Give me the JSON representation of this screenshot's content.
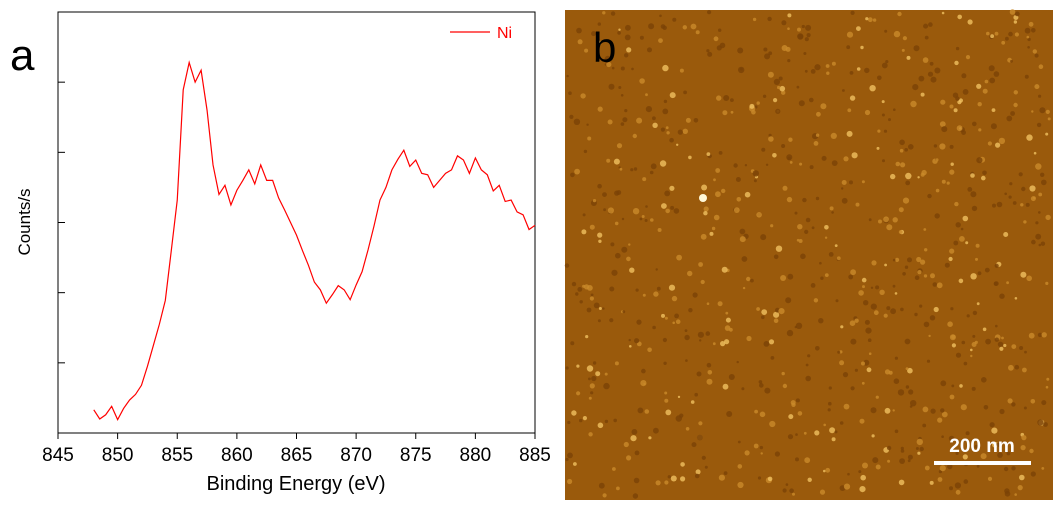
{
  "chart_data": {
    "type": "line",
    "panel_label": "a",
    "xlabel": "Binding Energy (eV)",
    "ylabel": "Counts/s",
    "x": [
      848,
      848.5,
      849,
      849.5,
      850,
      850.5,
      851,
      851.5,
      852,
      852.5,
      853,
      853.5,
      854,
      854.5,
      855,
      855.5,
      856,
      856.5,
      857,
      857.5,
      858,
      858.5,
      859,
      859.5,
      860,
      860.5,
      861,
      861.5,
      862,
      862.5,
      863,
      863.5,
      864,
      864.5,
      865,
      865.5,
      866,
      866.5,
      867,
      867.5,
      868,
      868.5,
      869,
      869.5,
      870,
      870.5,
      871,
      871.5,
      872,
      872.5,
      873,
      873.5,
      874,
      874.5,
      875,
      875.5,
      876,
      876.5,
      877,
      877.5,
      878,
      878.5,
      879,
      879.5,
      880,
      880.5,
      881,
      881.5,
      882,
      882.5,
      883,
      883.5,
      884,
      884.5,
      885
    ],
    "series": [
      {
        "name": "Ni",
        "color": "#ff0000",
        "values": [
          0.33,
          0.2,
          0.26,
          0.38,
          0.19,
          0.35,
          0.47,
          0.55,
          0.68,
          0.95,
          1.25,
          1.55,
          1.89,
          2.6,
          3.32,
          4.89,
          5.28,
          5.0,
          5.17,
          4.6,
          3.82,
          3.4,
          3.53,
          3.25,
          3.46,
          3.6,
          3.75,
          3.55,
          3.82,
          3.6,
          3.6,
          3.35,
          3.18,
          3.0,
          2.82,
          2.6,
          2.39,
          2.15,
          2.04,
          1.85,
          1.97,
          2.1,
          2.04,
          1.9,
          2.11,
          2.3,
          2.61,
          2.95,
          3.32,
          3.5,
          3.75,
          3.9,
          4.03,
          3.8,
          3.89,
          3.7,
          3.68,
          3.5,
          3.6,
          3.7,
          3.75,
          3.95,
          3.89,
          3.7,
          3.92,
          3.75,
          3.68,
          3.45,
          3.53,
          3.3,
          3.32,
          3.15,
          3.11,
          2.9,
          2.96
        ]
      }
    ],
    "xlim": [
      845,
      885
    ],
    "xticks": [
      845,
      850,
      855,
      860,
      865,
      870,
      875,
      880,
      885
    ],
    "ylim": [
      0,
      6
    ],
    "yticks": [
      1,
      2,
      3,
      4,
      5
    ],
    "ytick_labels": false,
    "legend": "top-right"
  },
  "image_panel": {
    "label": "b",
    "scale_bar": "200 nm"
  }
}
